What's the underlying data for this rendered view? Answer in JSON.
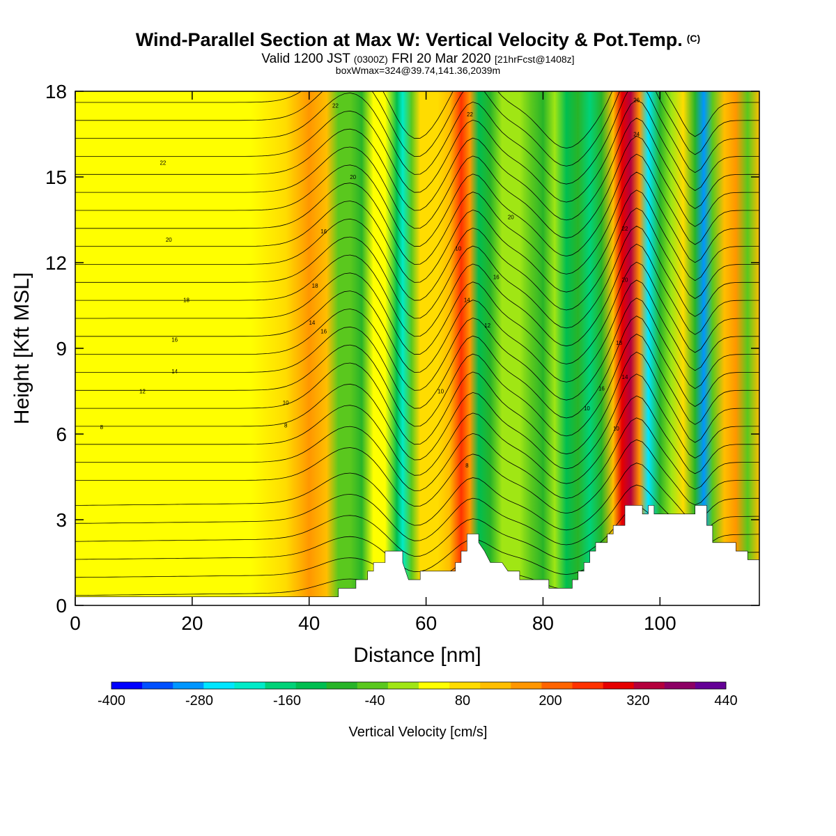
{
  "header": {
    "title": "Wind-Parallel Section at Max W: Vertical Velocity & Pot.Temp.",
    "copyright": "(C)",
    "valid_pre": "Valid 1200 JST",
    "valid_utc": "(0300Z)",
    "valid_post": "FRI 20 Mar 2020",
    "forecast": "[21hrFcst@1408z]",
    "box_info": "boxWmax=324@39.74,141.36,2039m"
  },
  "chart_data": {
    "type": "heatmap",
    "xlabel": "Distance [nm]",
    "ylabel": "Height [Kft MSL]",
    "xlim": [
      0,
      117
    ],
    "ylim": [
      0,
      18
    ],
    "xticks": [
      0,
      20,
      40,
      60,
      80,
      100
    ],
    "yticks": [
      0,
      3,
      6,
      9,
      12,
      15,
      18
    ],
    "colorbar": {
      "label": "Vertical Velocity [cm/s]",
      "tick_labels": [
        "-400",
        "-280",
        "-160",
        "-40",
        "80",
        "200",
        "320",
        "440"
      ],
      "tick_values": [
        -400,
        -280,
        -160,
        -40,
        80,
        200,
        320,
        440
      ],
      "colors": [
        "#0000ff",
        "#0050ff",
        "#0096ff",
        "#00e6ff",
        "#00ebc8",
        "#00d278",
        "#00be50",
        "#28b428",
        "#5ac81e",
        "#a0e614",
        "#ffff00",
        "#ffdc00",
        "#ffbe00",
        "#ff9600",
        "#ff6400",
        "#ff3200",
        "#e60000",
        "#b4003c",
        "#8c0064",
        "#640096"
      ]
    },
    "vertical_velocity_columns": [
      {
        "x": 0,
        "w": 10
      },
      {
        "x": 10,
        "w": 30
      },
      {
        "x": 30,
        "w": 30
      },
      {
        "x": 36,
        "w": 60
      },
      {
        "x": 40,
        "w": 140
      },
      {
        "x": 43,
        "w": 110
      },
      {
        "x": 45,
        "w": -80
      },
      {
        "x": 47,
        "w": -60
      },
      {
        "x": 49,
        "w": -110
      },
      {
        "x": 51,
        "w": 20
      },
      {
        "x": 53,
        "w": 30
      },
      {
        "x": 55,
        "w": -140
      },
      {
        "x": 56,
        "w": -220
      },
      {
        "x": 57.5,
        "w": -60
      },
      {
        "x": 59,
        "w": 40
      },
      {
        "x": 62,
        "w": 50
      },
      {
        "x": 64,
        "w": 110
      },
      {
        "x": 66,
        "w": 200
      },
      {
        "x": 67.5,
        "w": 120
      },
      {
        "x": 69,
        "w": -130
      },
      {
        "x": 71,
        "w": -90
      },
      {
        "x": 73,
        "w": -40
      },
      {
        "x": 76,
        "w": -30
      },
      {
        "x": 78,
        "w": -80
      },
      {
        "x": 80,
        "w": -110
      },
      {
        "x": 82,
        "w": -40
      },
      {
        "x": 84,
        "w": -150
      },
      {
        "x": 86,
        "w": -100
      },
      {
        "x": 88,
        "w": -200
      },
      {
        "x": 90,
        "w": -100
      },
      {
        "x": 92,
        "w": 90
      },
      {
        "x": 93.5,
        "w": 240
      },
      {
        "x": 95,
        "w": 300
      },
      {
        "x": 96.5,
        "w": 150
      },
      {
        "x": 98,
        "w": -260
      },
      {
        "x": 100,
        "w": -120
      },
      {
        "x": 102,
        "w": -30
      },
      {
        "x": 104,
        "w": 60
      },
      {
        "x": 106,
        "w": -120
      },
      {
        "x": 107.5,
        "w": -300
      },
      {
        "x": 109,
        "w": -60
      },
      {
        "x": 111,
        "w": 80
      },
      {
        "x": 113,
        "w": 140
      },
      {
        "x": 115,
        "w": -50
      },
      {
        "x": 117,
        "w": 80
      }
    ],
    "terrain_kft": [
      {
        "x": 0,
        "h": 0.3
      },
      {
        "x": 45,
        "h": 0.3
      },
      {
        "x": 45,
        "h": 0.6
      },
      {
        "x": 48,
        "h": 0.6
      },
      {
        "x": 48,
        "h": 0.9
      },
      {
        "x": 50,
        "h": 0.9
      },
      {
        "x": 50,
        "h": 1.2
      },
      {
        "x": 51,
        "h": 1.2
      },
      {
        "x": 51,
        "h": 1.5
      },
      {
        "x": 53,
        "h": 1.5
      },
      {
        "x": 53,
        "h": 1.9
      },
      {
        "x": 56,
        "h": 1.9
      },
      {
        "x": 56,
        "h": 1.5
      },
      {
        "x": 56.5,
        "h": 1.2
      },
      {
        "x": 57,
        "h": 0.9
      },
      {
        "x": 59,
        "h": 0.9
      },
      {
        "x": 59,
        "h": 1.2
      },
      {
        "x": 65,
        "h": 1.2
      },
      {
        "x": 65,
        "h": 1.5
      },
      {
        "x": 66,
        "h": 1.5
      },
      {
        "x": 66,
        "h": 1.9
      },
      {
        "x": 67,
        "h": 1.9
      },
      {
        "x": 67,
        "h": 2.5
      },
      {
        "x": 69,
        "h": 2.5
      },
      {
        "x": 69,
        "h": 2.2
      },
      {
        "x": 70,
        "h": 1.9
      },
      {
        "x": 71,
        "h": 1.5
      },
      {
        "x": 73,
        "h": 1.5
      },
      {
        "x": 74,
        "h": 1.2
      },
      {
        "x": 76,
        "h": 1.2
      },
      {
        "x": 76,
        "h": 0.9
      },
      {
        "x": 81,
        "h": 0.9
      },
      {
        "x": 81,
        "h": 0.6
      },
      {
        "x": 85,
        "h": 0.6
      },
      {
        "x": 85,
        "h": 0.9
      },
      {
        "x": 86,
        "h": 0.9
      },
      {
        "x": 86,
        "h": 1.2
      },
      {
        "x": 87,
        "h": 1.2
      },
      {
        "x": 87,
        "h": 1.5
      },
      {
        "x": 88,
        "h": 1.5
      },
      {
        "x": 88,
        "h": 1.9
      },
      {
        "x": 89,
        "h": 1.9
      },
      {
        "x": 89,
        "h": 2.2
      },
      {
        "x": 91,
        "h": 2.2
      },
      {
        "x": 91,
        "h": 2.5
      },
      {
        "x": 92,
        "h": 2.5
      },
      {
        "x": 92,
        "h": 2.8
      },
      {
        "x": 94,
        "h": 2.8
      },
      {
        "x": 94,
        "h": 3.5
      },
      {
        "x": 97,
        "h": 3.5
      },
      {
        "x": 97,
        "h": 3.2
      },
      {
        "x": 98,
        "h": 3.2
      },
      {
        "x": 98,
        "h": 3.5
      },
      {
        "x": 99,
        "h": 3.5
      },
      {
        "x": 99,
        "h": 3.2
      },
      {
        "x": 106,
        "h": 3.2
      },
      {
        "x": 106,
        "h": 3.5
      },
      {
        "x": 108,
        "h": 3.5
      },
      {
        "x": 108,
        "h": 2.8
      },
      {
        "x": 109,
        "h": 2.8
      },
      {
        "x": 109,
        "h": 2.2
      },
      {
        "x": 113,
        "h": 2.2
      },
      {
        "x": 113,
        "h": 1.9
      },
      {
        "x": 115,
        "h": 1.9
      },
      {
        "x": 115,
        "h": 1.6
      },
      {
        "x": 117,
        "h": 1.6
      }
    ],
    "theta_contours": {
      "levels_count": 28,
      "labels": [
        {
          "x": 4.5,
          "y": 6.25,
          "text": "8"
        },
        {
          "x": 11.5,
          "y": 7.5,
          "text": "12"
        },
        {
          "x": 17,
          "y": 8.2,
          "text": "14"
        },
        {
          "x": 17,
          "y": 9.3,
          "text": "16"
        },
        {
          "x": 19,
          "y": 10.7,
          "text": "18"
        },
        {
          "x": 16,
          "y": 12.8,
          "text": "20"
        },
        {
          "x": 15,
          "y": 15.5,
          "text": "22"
        },
        {
          "x": 36,
          "y": 6.3,
          "text": "8"
        },
        {
          "x": 36,
          "y": 7.1,
          "text": "10"
        },
        {
          "x": 40.5,
          "y": 9.9,
          "text": "14"
        },
        {
          "x": 42.5,
          "y": 9.6,
          "text": "16"
        },
        {
          "x": 41,
          "y": 11.2,
          "text": "18"
        },
        {
          "x": 42.5,
          "y": 13.1,
          "text": "16"
        },
        {
          "x": 44.5,
          "y": 17.5,
          "text": "22"
        },
        {
          "x": 47.5,
          "y": 15.0,
          "text": "20"
        },
        {
          "x": 67,
          "y": 4.9,
          "text": "8"
        },
        {
          "x": 62.5,
          "y": 7.5,
          "text": "10"
        },
        {
          "x": 65.5,
          "y": 12.5,
          "text": "10"
        },
        {
          "x": 67,
          "y": 10.7,
          "text": "14"
        },
        {
          "x": 70.5,
          "y": 9.8,
          "text": "12"
        },
        {
          "x": 72,
          "y": 11.5,
          "text": "16"
        },
        {
          "x": 67.5,
          "y": 17.2,
          "text": "22"
        },
        {
          "x": 74.5,
          "y": 13.6,
          "text": "20"
        },
        {
          "x": 87.5,
          "y": 6.9,
          "text": "10"
        },
        {
          "x": 90,
          "y": 7.6,
          "text": "16"
        },
        {
          "x": 92.5,
          "y": 6.2,
          "text": "10"
        },
        {
          "x": 93,
          "y": 9.2,
          "text": "18"
        },
        {
          "x": 94,
          "y": 8.0,
          "text": "14"
        },
        {
          "x": 94,
          "y": 11.4,
          "text": "20"
        },
        {
          "x": 94,
          "y": 13.2,
          "text": "22"
        },
        {
          "x": 96,
          "y": 16.5,
          "text": "24"
        },
        {
          "x": 96,
          "y": 17.7,
          "text": "26"
        }
      ]
    }
  }
}
